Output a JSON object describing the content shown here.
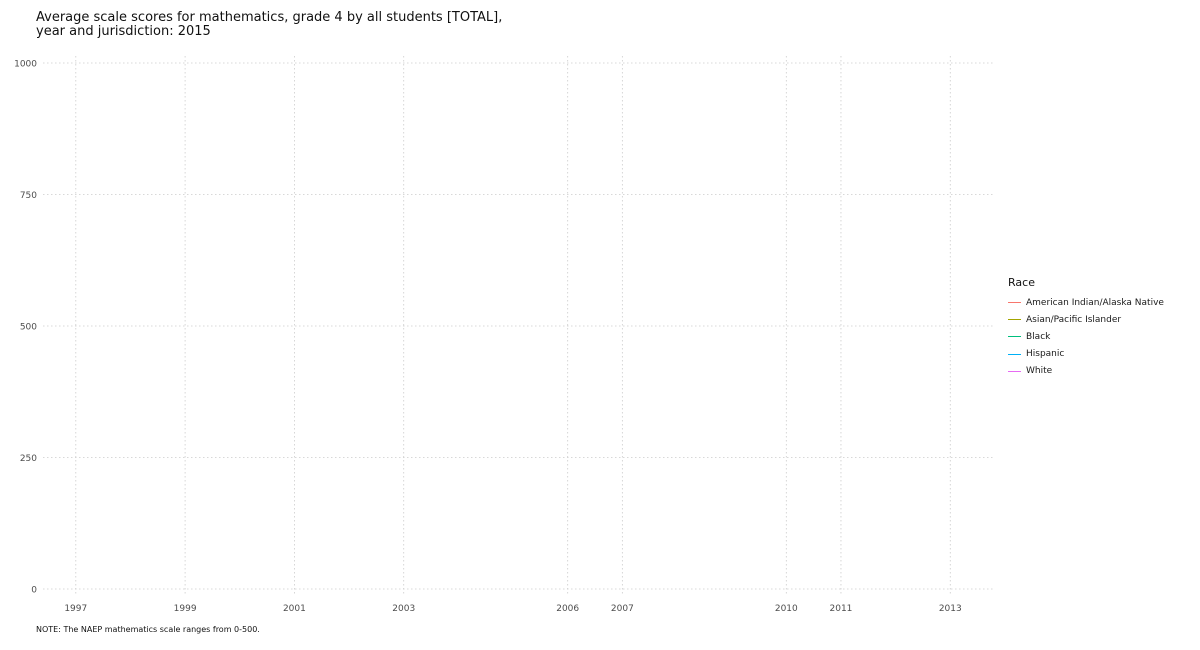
{
  "chart_data": {
    "type": "line",
    "title_lines": [
      "Average scale scores for mathematics, grade 4 by all students [TOTAL],",
      "year and jurisdiction: 2015"
    ],
    "xlabel": "",
    "ylabel": "",
    "x_ticks": [
      1997,
      1999,
      2001,
      2003,
      2006,
      2007,
      2010,
      2011,
      2013
    ],
    "xlim": [
      1996.4,
      2013.8
    ],
    "y_ticks": [
      0,
      250,
      500,
      750,
      1000
    ],
    "ylim": [
      0,
      1000
    ],
    "grid": true,
    "legend": {
      "title": "Race",
      "placement": "right"
    },
    "series": [
      {
        "name": "American Indian/Alaska Native",
        "color": "#F8766D",
        "values": []
      },
      {
        "name": "Asian/Pacific Islander",
        "color": "#A3A500",
        "values": []
      },
      {
        "name": "Black",
        "color": "#00BF7D",
        "values": []
      },
      {
        "name": "Hispanic",
        "color": "#00B0F6",
        "values": []
      },
      {
        "name": "White",
        "color": "#E76BF3",
        "values": []
      }
    ]
  },
  "note": "NOTE: The NAEP mathematics scale ranges from 0-500."
}
